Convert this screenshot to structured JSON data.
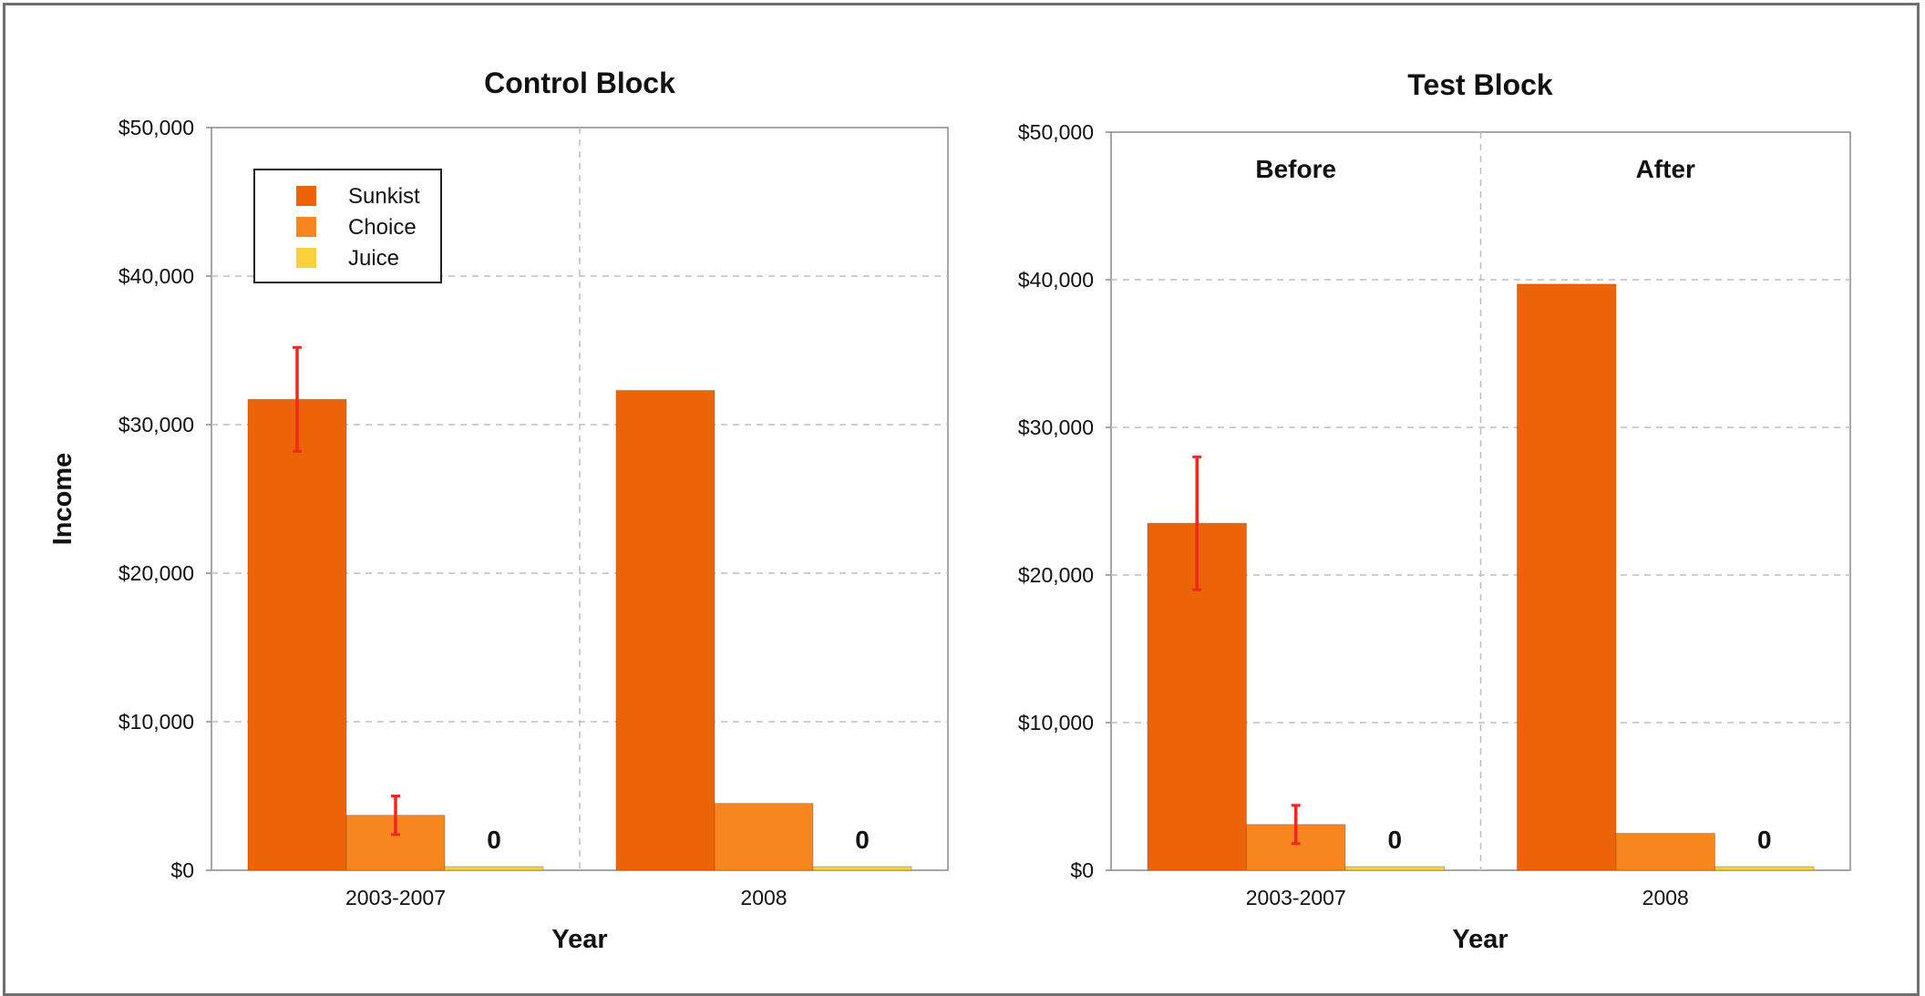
{
  "chart_data": [
    {
      "type": "bar",
      "title": "Control Block",
      "xlabel": "Year",
      "ylabel": "Income",
      "ylim": [
        0,
        50000
      ],
      "yticks": [
        "$0",
        "$10,000",
        "$20,000",
        "$30,000",
        "$40,000",
        "$50,000"
      ],
      "categories": [
        "2003-2007",
        "2008"
      ],
      "series": [
        {
          "name": "Sunkist",
          "values": [
            31700,
            32300
          ],
          "error": [
            3500,
            null
          ],
          "color": "#EC6308"
        },
        {
          "name": "Choice",
          "values": [
            3700,
            4500
          ],
          "error": [
            1300,
            null
          ],
          "color": "#F7861E"
        },
        {
          "name": "Juice",
          "values": [
            0,
            0
          ],
          "error": [
            null,
            null
          ],
          "color": "#F9D23B",
          "value_labels": [
            "0",
            "0"
          ]
        }
      ],
      "legend": {
        "position": "top-left",
        "entries": [
          "Sunkist",
          "Choice",
          "Juice"
        ]
      },
      "grid": true
    },
    {
      "type": "bar",
      "title": "Test Block",
      "xlabel": "Year",
      "ylabel": "",
      "ylim": [
        0,
        50000
      ],
      "yticks": [
        "$0",
        "$10,000",
        "$20,000",
        "$30,000",
        "$40,000",
        "$50,000"
      ],
      "categories": [
        "2003-2007",
        "2008"
      ],
      "panel_labels": [
        "Before",
        "After"
      ],
      "series": [
        {
          "name": "Sunkist",
          "values": [
            23500,
            39700
          ],
          "error": [
            4500,
            null
          ],
          "color": "#EC6308"
        },
        {
          "name": "Choice",
          "values": [
            3100,
            2500
          ],
          "error": [
            1300,
            null
          ],
          "color": "#F7861E"
        },
        {
          "name": "Juice",
          "values": [
            0,
            0
          ],
          "error": [
            null,
            null
          ],
          "color": "#F9D23B",
          "value_labels": [
            "0",
            "0"
          ]
        }
      ],
      "grid": true
    }
  ],
  "colors": {
    "error_bar": "#F0281E",
    "grid": "#BDBDBD",
    "axis": "#8A8A8A"
  }
}
